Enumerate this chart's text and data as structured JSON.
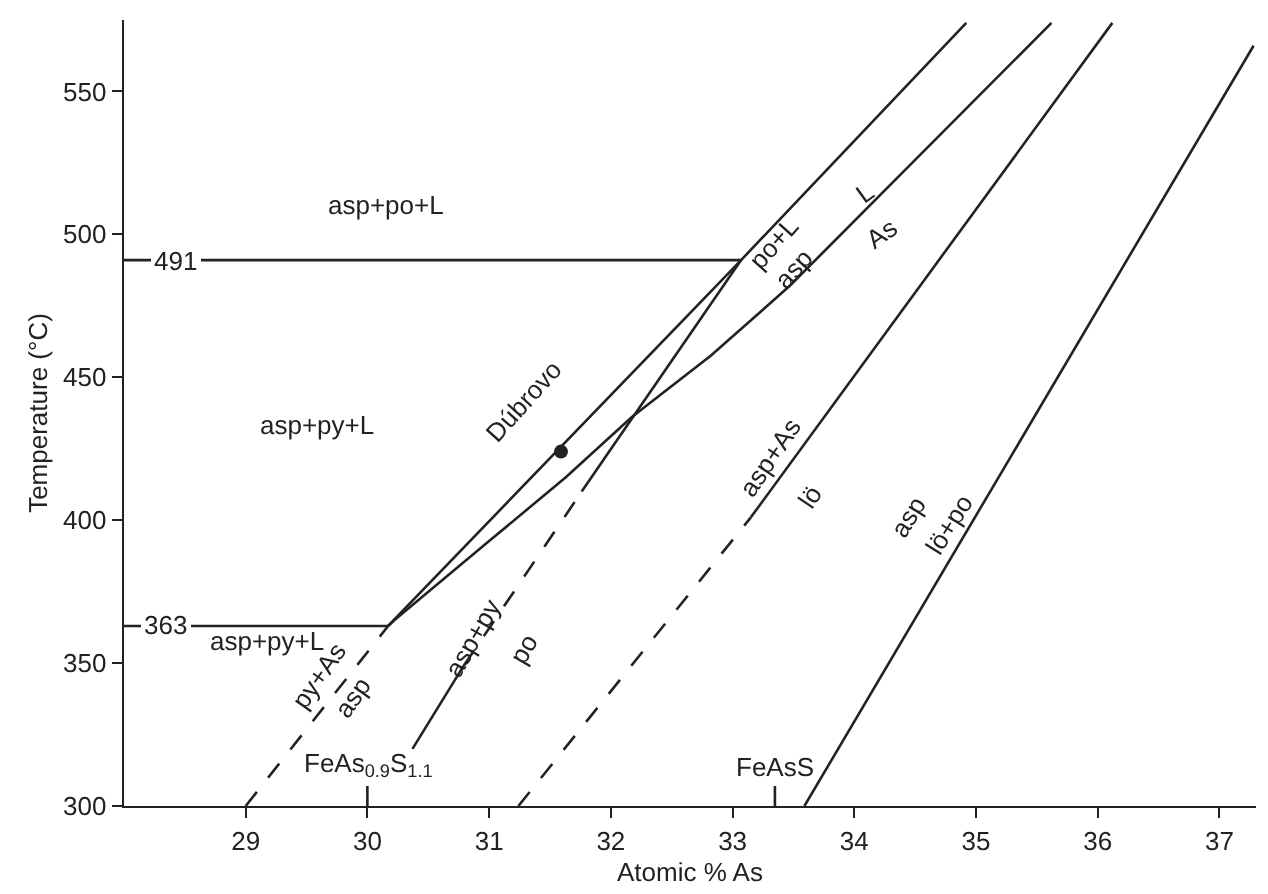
{
  "chart_data": {
    "type": "line",
    "xlabel": "Atomic % As",
    "ylabel": "Temperature (°C)",
    "xlim": [
      28,
      37.3
    ],
    "ylim": [
      300,
      575
    ],
    "xticks": [
      29,
      30,
      31,
      32,
      33,
      34,
      35,
      36,
      37
    ],
    "yticks": [
      300,
      350,
      400,
      450,
      500,
      550
    ],
    "marker": "none",
    "series": [
      {
        "color": "#222222",
        "line_style": "dashed",
        "x": [
          29,
          30.17
        ],
        "values": [
          300,
          363
        ]
      },
      {
        "color": "#222222",
        "line_style": "solid",
        "x": [
          30.17,
          33.07,
          34.92
        ],
        "values": [
          363,
          491,
          574
        ]
      },
      {
        "color": "#222222",
        "line_style": "solid",
        "x": [
          30.17,
          30.22,
          30.98,
          31.63,
          32.17,
          32.82,
          33.47,
          35.62
        ],
        "values": [
          363,
          365,
          392,
          415,
          436,
          457.5,
          482,
          574
        ]
      },
      {
        "color": "#222222",
        "line_style": "solid",
        "x": [
          31.76,
          33.07
        ],
        "values": [
          410,
          491
        ]
      },
      {
        "color": "#222222",
        "line_style": "dashed",
        "x": [
          30.79,
          31.76
        ],
        "values": [
          349,
          410
        ]
      },
      {
        "color": "#222222",
        "line_style": "solid",
        "x": [
          30.37,
          30.79
        ],
        "values": [
          320,
          349
        ]
      },
      {
        "color": "#222222",
        "line_style": "dashed",
        "x": [
          31.24,
          33.15
        ],
        "values": [
          300,
          401
        ]
      },
      {
        "color": "#222222",
        "line_style": "solid",
        "x": [
          33.15,
          36.12
        ],
        "values": [
          401,
          574
        ]
      },
      {
        "color": "#222222",
        "line_style": "solid",
        "x": [
          33.59,
          37.28
        ],
        "values": [
          300,
          566
        ]
      },
      {
        "color": "#222222",
        "line_style": "solid",
        "x": [
          28,
          33.07
        ],
        "values": [
          491,
          491
        ]
      },
      {
        "color": "#222222",
        "line_style": "solid",
        "x": [
          28,
          30.17
        ],
        "values": [
          363,
          363
        ]
      },
      {
        "type": "scatter",
        "color": "#222222",
        "marker": "circle",
        "x": [
          31.59
        ],
        "values": [
          424
        ]
      }
    ],
    "annotations": [
      "asp+po+L",
      {
        "text": "491",
        "x": 28.43,
        "y": 491
      },
      "asp+py+L",
      {
        "text": "363",
        "x": 28.35,
        "y": 363
      },
      "asp+py+L",
      "Dúbrovo",
      "po+L",
      "asp",
      "L",
      "As",
      "asp+As",
      "lö",
      "asp",
      "lö+po",
      {
        "text": "asp+py",
        "x": 30.87,
        "y": 359
      },
      "po",
      "py+As",
      "asp",
      "FeAs$_{0.9}$S$_{1.1}$",
      "FeAsS"
    ]
  }
}
